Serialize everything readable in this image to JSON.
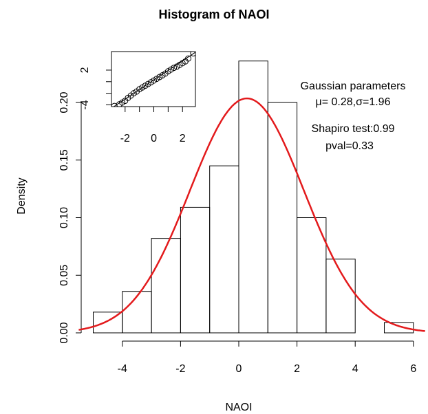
{
  "chart_data": [
    {
      "type": "histogram",
      "title": "Histogram of NAOI",
      "x_label": "NAOI",
      "y_label": "Density",
      "bins": [
        -5,
        -4,
        -3,
        -2,
        -1,
        0,
        1,
        2,
        3,
        4,
        5,
        6
      ],
      "values": [
        0.018,
        0.036,
        0.082,
        0.109,
        0.145,
        0.236,
        0.2,
        0.1,
        0.064,
        0,
        0.009
      ],
      "xlim": [
        -5.5,
        6.4
      ],
      "ylim": [
        0,
        0.24
      ],
      "xticks": [
        -4,
        -2,
        0,
        2,
        4,
        6
      ],
      "yticks": [
        {
          "value": 0,
          "label": "0.00"
        },
        {
          "value": 0.05,
          "label": "0.05"
        },
        {
          "value": 0.1,
          "label": "0.10"
        },
        {
          "value": 0.15,
          "label": "0.15"
        },
        {
          "value": 0.2,
          "label": "0.20"
        }
      ],
      "curve": {
        "mean": 0.28,
        "sd": 1.96,
        "color": "#e31a1c"
      },
      "annotations": [
        "Gaussian parameters",
        "μ= 0.28,σ=1.96",
        "Shapiro test:0.99",
        "pval=0.33"
      ]
    },
    {
      "type": "scatter",
      "x": [
        -2.75,
        -2.4,
        -2.2,
        -2.0,
        -1.8,
        -1.6,
        -1.4,
        -1.2,
        -1.0,
        -0.8,
        -0.6,
        -0.4,
        -0.2,
        0.0,
        0.2,
        0.4,
        0.6,
        0.8,
        1.0,
        1.2,
        1.4,
        1.6,
        1.8,
        2.0,
        2.2,
        2.4,
        2.75
      ],
      "y": [
        -4.2,
        -3.9,
        -3.6,
        -3.3,
        -2.8,
        -2.4,
        -2.0,
        -1.7,
        -1.3,
        -1.0,
        -0.7,
        -0.4,
        -0.1,
        0.2,
        0.5,
        0.8,
        1.1,
        1.4,
        1.8,
        2.1,
        2.4,
        2.6,
        2.9,
        3.2,
        3.5,
        4.0,
        4.9
      ],
      "xlim": [
        -2.95,
        2.9
      ],
      "ylim": [
        -4.3,
        5.2
      ],
      "xticks": [
        -2,
        0,
        2
      ],
      "xminor": [
        -1,
        1
      ],
      "yticks": [
        -4,
        2
      ],
      "yminor": [
        -2,
        0
      ],
      "qqline": {
        "intercept": 0.3,
        "slope": 1.65
      }
    }
  ]
}
